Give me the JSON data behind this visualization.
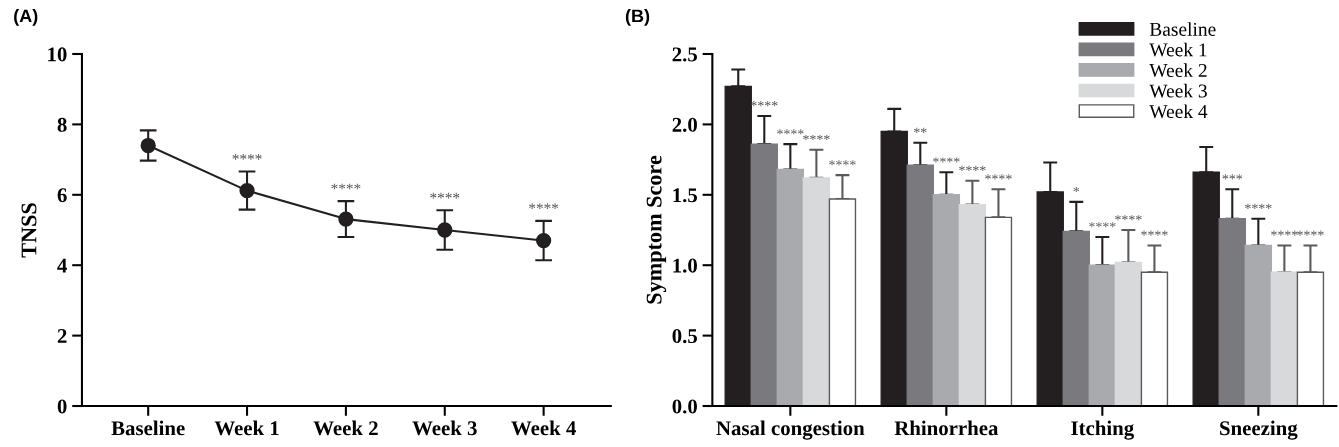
{
  "chart_data": [
    {
      "type": "line",
      "title": "(A)",
      "ylabel": "TNSS",
      "categories": [
        "Baseline",
        "Week 1",
        "Week 2",
        "Week 3",
        "Week 4"
      ],
      "series": [
        {
          "color": "#231f20",
          "values": [
            7.4,
            6.12,
            5.31,
            5.0,
            4.7
          ],
          "errors": [
            0.43,
            0.54,
            0.51,
            0.56,
            0.56
          ],
          "value_labels": [
            null,
            "****",
            "****",
            "****",
            "****"
          ]
        }
      ],
      "ylim": [
        0,
        10
      ],
      "yticks": [
        0,
        2,
        4,
        6,
        8,
        10
      ],
      "marker": "circle",
      "line_style": "solid",
      "grid": false
    },
    {
      "type": "bar",
      "title": "(B)",
      "ylabel": "Symptom Score",
      "categories": [
        "Nasal congestion",
        "Rhinorrhea",
        "Itching",
        "Sneezing"
      ],
      "series": [
        {
          "name": "Baseline",
          "color": "#231f20",
          "values": [
            2.27,
            1.95,
            1.52,
            1.66
          ],
          "errors": [
            [
              2.27,
              2.39
            ],
            [
              1.95,
              2.11
            ],
            [
              1.52,
              1.73
            ],
            [
              1.66,
              1.84
            ]
          ],
          "value_labels": [
            null,
            null,
            null,
            null
          ]
        },
        {
          "name": "Week 1",
          "color": "#7a7a7e",
          "values": [
            1.86,
            1.71,
            1.24,
            1.33
          ],
          "errors": [
            [
              1.86,
              2.06
            ],
            [
              1.71,
              1.87
            ],
            [
              1.24,
              1.45
            ],
            [
              1.33,
              1.54
            ]
          ],
          "value_labels": [
            "****",
            "**",
            "*",
            "***"
          ]
        },
        {
          "name": "Week 2",
          "color": "#a9aaad",
          "values": [
            1.68,
            1.5,
            1.0,
            1.14
          ],
          "errors": [
            [
              1.68,
              1.86
            ],
            [
              1.5,
              1.66
            ],
            [
              1.0,
              1.2
            ],
            [
              1.14,
              1.33
            ]
          ],
          "value_labels": [
            "****",
            "****",
            "****",
            "****"
          ]
        },
        {
          "name": "Week 3",
          "color": "#d8d9db",
          "values": [
            1.62,
            1.43,
            1.02,
            0.95
          ],
          "errors": [
            [
              1.62,
              1.82
            ],
            [
              1.43,
              1.6
            ],
            [
              1.02,
              1.25
            ],
            [
              0.95,
              1.14
            ]
          ],
          "value_labels": [
            "****",
            "****",
            "****",
            "****"
          ]
        },
        {
          "name": "Week 4",
          "color": "#ffffff",
          "values": [
            1.47,
            1.34,
            0.95,
            0.95
          ],
          "errors": [
            [
              1.47,
              1.64
            ],
            [
              1.34,
              1.54
            ],
            [
              0.95,
              1.14
            ],
            [
              0.95,
              1.14
            ]
          ],
          "value_labels": [
            "****",
            "****",
            "****",
            "****"
          ]
        }
      ],
      "ylim": [
        0,
        2.5
      ],
      "yticks": [
        {
          "value": 0,
          "label": "0.0"
        },
        {
          "value": 0.5,
          "label": "0.5"
        },
        {
          "value": 1,
          "label": "1.0"
        },
        {
          "value": 1.5,
          "label": "1.5"
        },
        {
          "value": 2,
          "label": "2.0"
        },
        {
          "value": 2.5,
          "label": "2.5"
        }
      ],
      "grid": false,
      "legend": "top right"
    }
  ]
}
